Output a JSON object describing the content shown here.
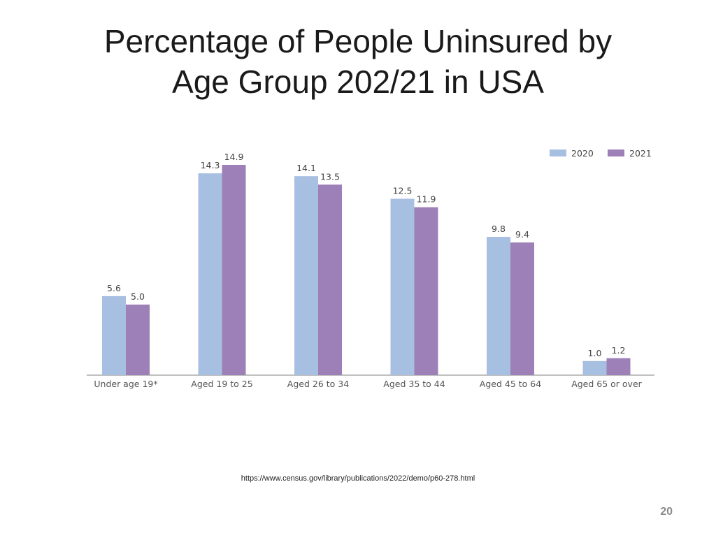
{
  "slide": {
    "title_line1": "Percentage of People Uninsured by",
    "title_line2": "Age Group 202/21 in USA",
    "source": "https://www.census.gov/library/publications/2022/demo/p60-278.html",
    "page_number": "20"
  },
  "chart_data": {
    "type": "bar",
    "title": "",
    "xlabel": "",
    "ylabel": "",
    "categories": [
      "Under age 19*",
      "Aged 19 to 25",
      "Aged 26 to 34",
      "Aged 35 to 44",
      "Aged 45 to 64",
      "Aged 65 or over"
    ],
    "series": [
      {
        "name": "2020",
        "color": "#a7bfe0",
        "values": [
          5.6,
          14.3,
          14.1,
          12.5,
          9.8,
          1.0
        ],
        "labels": [
          "5.6",
          "14.3",
          "14.1",
          "12.5",
          "9.8",
          "1.0"
        ]
      },
      {
        "name": "2021",
        "color": "#9d80b8",
        "values": [
          5.0,
          14.9,
          13.5,
          11.9,
          9.4,
          1.2
        ],
        "labels": [
          "5.0",
          "14.9",
          "13.5",
          "11.9",
          "9.4",
          "1.2"
        ]
      }
    ],
    "ylim": [
      0,
      15.5
    ],
    "grid": false,
    "legend": "top-right"
  }
}
